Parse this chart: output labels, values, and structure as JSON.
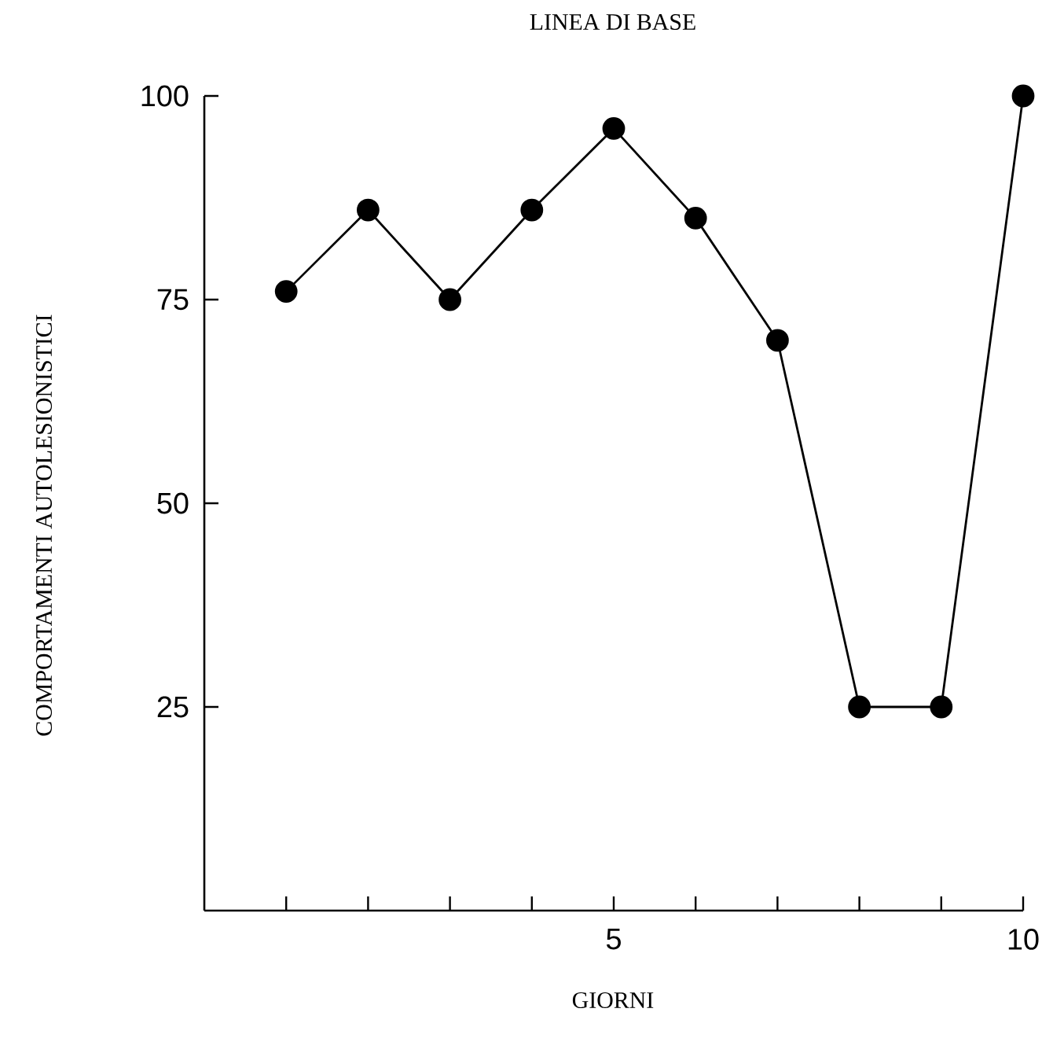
{
  "chart_data": {
    "type": "line",
    "title": "LINEA DI BASE",
    "xlabel": "GIORNI",
    "ylabel": "COMPORTAMENTI AUTOLESIONISTICI",
    "x": [
      1,
      2,
      3,
      4,
      5,
      6,
      7,
      8,
      9,
      10
    ],
    "series": [
      {
        "color": "#000000",
        "values": [
          76,
          86,
          75,
          86,
          96,
          85,
          70,
          25,
          25,
          100
        ]
      }
    ],
    "xlim": [
      0,
      10
    ],
    "ylim": [
      0,
      100
    ],
    "xticks": [
      {
        "value": 1,
        "label": null
      },
      {
        "value": 2,
        "label": null
      },
      {
        "value": 3,
        "label": null
      },
      {
        "value": 4,
        "label": null
      },
      5,
      {
        "value": 6,
        "label": null
      },
      {
        "value": 7,
        "label": null
      },
      {
        "value": 8,
        "label": null
      },
      {
        "value": 9,
        "label": null
      },
      10
    ],
    "yticks": [
      25,
      50,
      75,
      100
    ],
    "marker": "circle",
    "line_style": "solid",
    "grid": false
  }
}
